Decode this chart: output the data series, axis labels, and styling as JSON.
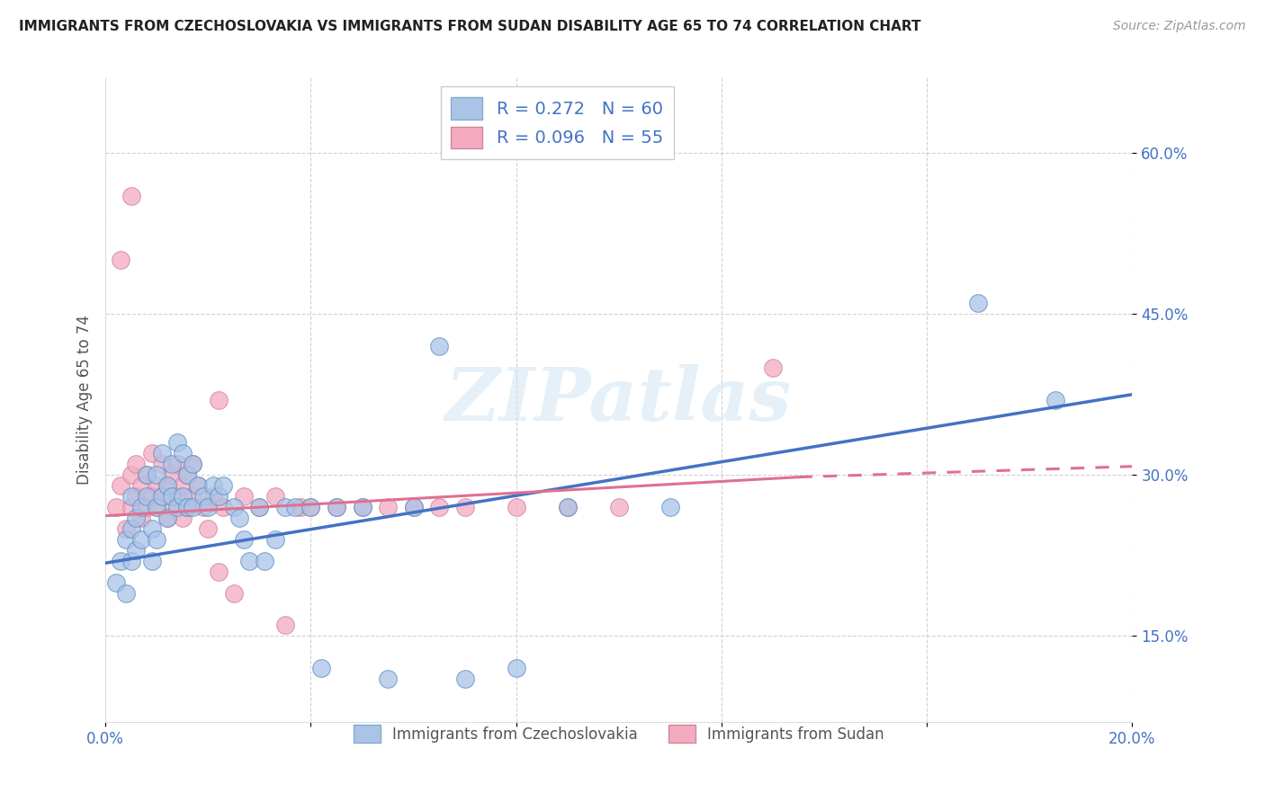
{
  "title": "IMMIGRANTS FROM CZECHOSLOVAKIA VS IMMIGRANTS FROM SUDAN DISABILITY AGE 65 TO 74 CORRELATION CHART",
  "source": "Source: ZipAtlas.com",
  "ylabel": "Disability Age 65 to 74",
  "y_ticks": [
    0.15,
    0.3,
    0.45,
    0.6
  ],
  "y_tick_labels": [
    "15.0%",
    "30.0%",
    "45.0%",
    "60.0%"
  ],
  "xlim": [
    0.0,
    0.2
  ],
  "ylim": [
    0.07,
    0.67
  ],
  "series1_color": "#aac4e8",
  "series2_color": "#f4aabf",
  "line1_color": "#4472c4",
  "line2_color": "#e07090",
  "R1": 0.272,
  "N1": 60,
  "R2": 0.096,
  "N2": 55,
  "legend1": "Immigrants from Czechoslovakia",
  "legend2": "Immigrants from Sudan",
  "watermark": "ZIPatlas",
  "series1_x": [
    0.002,
    0.003,
    0.004,
    0.004,
    0.005,
    0.005,
    0.005,
    0.006,
    0.006,
    0.007,
    0.007,
    0.008,
    0.008,
    0.009,
    0.009,
    0.01,
    0.01,
    0.01,
    0.011,
    0.011,
    0.012,
    0.012,
    0.013,
    0.013,
    0.014,
    0.014,
    0.015,
    0.015,
    0.016,
    0.016,
    0.017,
    0.017,
    0.018,
    0.019,
    0.02,
    0.021,
    0.022,
    0.023,
    0.025,
    0.026,
    0.027,
    0.028,
    0.03,
    0.031,
    0.033,
    0.035,
    0.037,
    0.04,
    0.042,
    0.045,
    0.05,
    0.055,
    0.06,
    0.065,
    0.07,
    0.08,
    0.09,
    0.11,
    0.17,
    0.185
  ],
  "series1_y": [
    0.2,
    0.22,
    0.24,
    0.19,
    0.22,
    0.25,
    0.28,
    0.26,
    0.23,
    0.27,
    0.24,
    0.3,
    0.28,
    0.25,
    0.22,
    0.3,
    0.27,
    0.24,
    0.32,
    0.28,
    0.29,
    0.26,
    0.31,
    0.28,
    0.33,
    0.27,
    0.32,
    0.28,
    0.3,
    0.27,
    0.31,
    0.27,
    0.29,
    0.28,
    0.27,
    0.29,
    0.28,
    0.29,
    0.27,
    0.26,
    0.24,
    0.22,
    0.27,
    0.22,
    0.24,
    0.27,
    0.27,
    0.27,
    0.12,
    0.27,
    0.27,
    0.11,
    0.27,
    0.42,
    0.11,
    0.12,
    0.27,
    0.27,
    0.46,
    0.37
  ],
  "series2_x": [
    0.002,
    0.003,
    0.004,
    0.005,
    0.005,
    0.006,
    0.006,
    0.007,
    0.007,
    0.008,
    0.008,
    0.009,
    0.009,
    0.01,
    0.01,
    0.011,
    0.011,
    0.012,
    0.012,
    0.013,
    0.013,
    0.014,
    0.014,
    0.015,
    0.015,
    0.016,
    0.016,
    0.017,
    0.017,
    0.018,
    0.019,
    0.02,
    0.021,
    0.022,
    0.023,
    0.025,
    0.027,
    0.03,
    0.033,
    0.035,
    0.038,
    0.04,
    0.045,
    0.05,
    0.055,
    0.06,
    0.065,
    0.07,
    0.08,
    0.09,
    0.1,
    0.003,
    0.005,
    0.022,
    0.13
  ],
  "series2_y": [
    0.27,
    0.29,
    0.25,
    0.3,
    0.27,
    0.31,
    0.28,
    0.29,
    0.26,
    0.3,
    0.27,
    0.32,
    0.28,
    0.29,
    0.27,
    0.31,
    0.28,
    0.29,
    0.26,
    0.3,
    0.27,
    0.31,
    0.28,
    0.29,
    0.26,
    0.3,
    0.27,
    0.31,
    0.28,
    0.29,
    0.27,
    0.25,
    0.28,
    0.21,
    0.27,
    0.19,
    0.28,
    0.27,
    0.28,
    0.16,
    0.27,
    0.27,
    0.27,
    0.27,
    0.27,
    0.27,
    0.27,
    0.27,
    0.27,
    0.27,
    0.27,
    0.5,
    0.56,
    0.37,
    0.4
  ]
}
